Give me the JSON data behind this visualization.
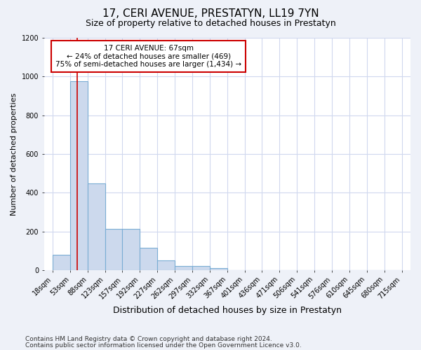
{
  "title": "17, CERI AVENUE, PRESTATYN, LL19 7YN",
  "subtitle": "Size of property relative to detached houses in Prestatyn",
  "xlabel": "Distribution of detached houses by size in Prestatyn",
  "ylabel": "Number of detached properties",
  "footnote1": "Contains HM Land Registry data © Crown copyright and database right 2024.",
  "footnote2": "Contains public sector information licensed under the Open Government Licence v3.0.",
  "annotation_line1": "17 CERI AVENUE: 67sqm",
  "annotation_line2": "← 24% of detached houses are smaller (469)",
  "annotation_line3": "75% of semi-detached houses are larger (1,434) →",
  "property_size": 67,
  "bar_edges": [
    18,
    53,
    88,
    123,
    157,
    192,
    227,
    262,
    297,
    332,
    367,
    401,
    436,
    471,
    506,
    541,
    576,
    610,
    645,
    680,
    715
  ],
  "bar_heights": [
    80,
    975,
    450,
    215,
    215,
    115,
    50,
    20,
    20,
    10,
    0,
    0,
    0,
    0,
    0,
    0,
    0,
    0,
    0,
    0
  ],
  "bar_color": "#ccd9ed",
  "bar_edge_color": "#7aadd4",
  "red_line_color": "#cc0000",
  "annotation_box_color": "#cc0000",
  "bg_color": "#eef1f8",
  "plot_bg_color": "#ffffff",
  "ylim": [
    0,
    1200
  ],
  "yticks": [
    0,
    200,
    400,
    600,
    800,
    1000,
    1200
  ],
  "grid_color": "#d0d8ee",
  "title_fontsize": 11,
  "subtitle_fontsize": 9,
  "ylabel_fontsize": 8,
  "xlabel_fontsize": 9,
  "tick_fontsize": 7,
  "footnote_fontsize": 6.5
}
